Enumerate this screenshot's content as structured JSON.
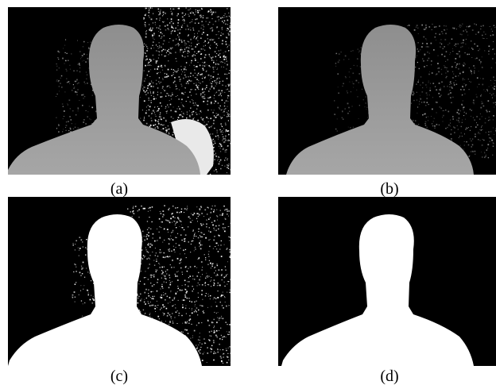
{
  "figure": {
    "panels": [
      {
        "id": "a",
        "label": "(a)",
        "style": "depth-gray-noisy-right"
      },
      {
        "id": "b",
        "label": "(b)",
        "style": "depth-gray-denoised"
      },
      {
        "id": "c",
        "label": "(c)",
        "style": "binary-mask-noisy"
      },
      {
        "id": "d",
        "label": "(d)",
        "style": "binary-mask-clean"
      }
    ]
  },
  "colors": {
    "background": "#000000",
    "depth_gray": "#9a9a9a",
    "mask_white": "#ffffff"
  }
}
